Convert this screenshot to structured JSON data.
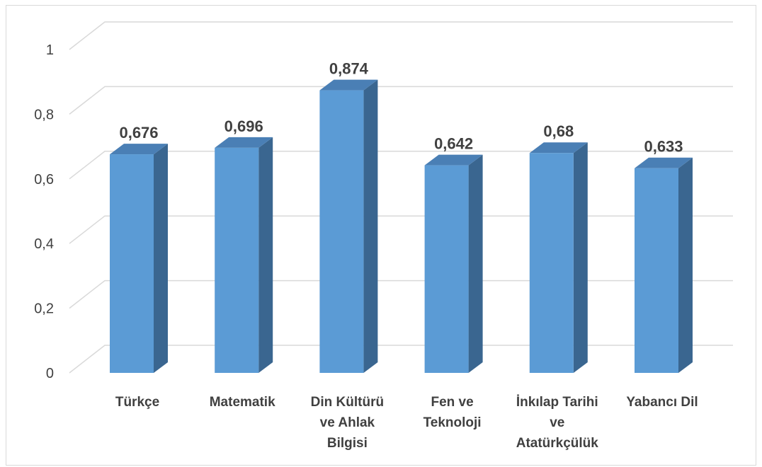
{
  "chart_data": {
    "type": "bar",
    "style": "3d-column",
    "categories": [
      "Türkçe",
      "Matematik",
      "Din Kültürü ve Ahlak Bilgisi",
      "Fen ve Teknoloji",
      "İnkılap Tarihi ve Atatürkçülük",
      "Yabancı Dil"
    ],
    "category_lines": [
      [
        "Türkçe"
      ],
      [
        "Matematik"
      ],
      [
        "Din Kültürü",
        "ve Ahlak",
        "Bilgisi"
      ],
      [
        "Fen ve",
        "Teknoloji"
      ],
      [
        "İnkılap Tarihi",
        "ve",
        "Atatürkçülük"
      ],
      [
        "Yabancı Dil"
      ]
    ],
    "values": [
      0.676,
      0.696,
      0.874,
      0.642,
      0.68,
      0.633
    ],
    "data_labels": [
      "0,676",
      "0,696",
      "0,874",
      "0,642",
      "0,68",
      "0,633"
    ],
    "y_ticks": [
      "0",
      "0,2",
      "0,4",
      "0,6",
      "0,8",
      "1"
    ],
    "ylim": [
      0,
      1
    ],
    "grid": true,
    "legend": "none",
    "title": "",
    "xlabel": "",
    "ylabel": "",
    "colors": {
      "bar_front": "#5b9bd5",
      "bar_side": "#3a6690",
      "bar_top": "#4a7fb5",
      "grid": "#d9d9d9",
      "text": "#404040"
    }
  }
}
